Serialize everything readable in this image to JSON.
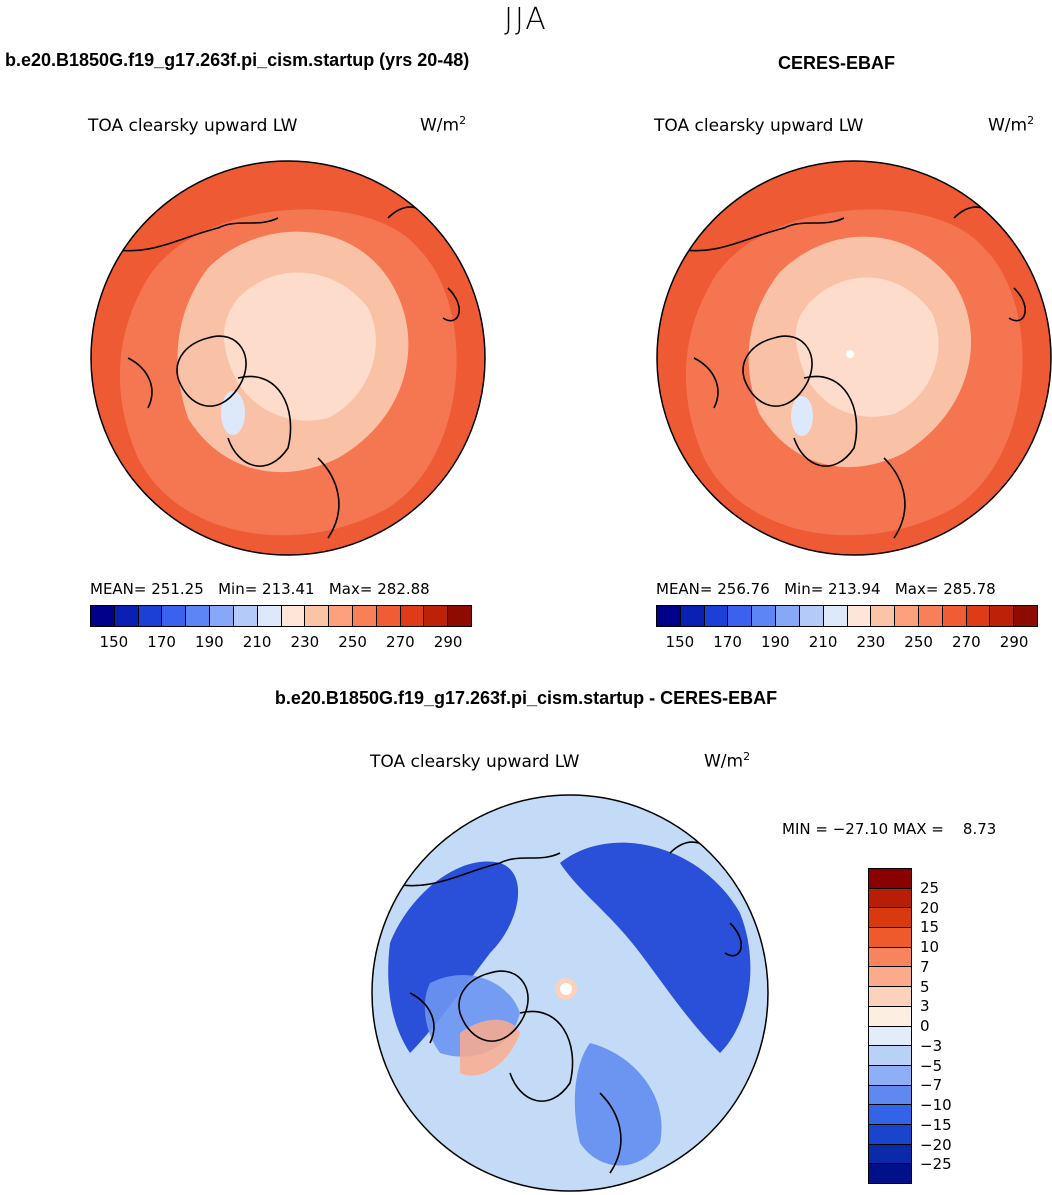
{
  "season": "JJA",
  "colors": {
    "abs_scale": [
      "#00008b",
      "#0a1fb4",
      "#1c3fd6",
      "#3a62ee",
      "#5d85f6",
      "#87a8f7",
      "#b4cbf9",
      "#dde9fb",
      "#fde6d8",
      "#fcc4a7",
      "#fca07d",
      "#f97f58",
      "#f15c36",
      "#de3b17",
      "#bd2108",
      "#8e0b02"
    ],
    "diff_scale": [
      "#8b0000",
      "#b81e06",
      "#d9390f",
      "#ee5a2c",
      "#f6845c",
      "#fbab8c",
      "#fdd2bd",
      "#fdeee2",
      "#e3edf9",
      "#b9d0f7",
      "#8eaef5",
      "#5f88f0",
      "#3363e6",
      "#1a44cc",
      "#0a2aaa",
      "#00108a"
    ],
    "map_abs_outer": "#ee5a34",
    "map_abs_mid": "#f47a55",
    "map_abs_inner": "#f9c2a6",
    "map_abs_core": "#fddccb",
    "map_diff_outer": "#c4dbf8",
    "map_diff_dark": "#2a4fd8",
    "map_diff_mid": "#6c95f2"
  },
  "chart_data": [
    {
      "type": "heatmap",
      "projection": "north-polar-stereographic",
      "panel_title": "b.e20.B1850G.f19_g17.263f.pi_cism.startup (yrs 20-48)",
      "variable": "TOA clearsky upward LW",
      "units_base": "W/m",
      "units_exp": "2",
      "mean_label": "MEAN=",
      "mean": "251.25",
      "min_label": "Min=",
      "min": "213.41",
      "max_label": "Max=",
      "max": "282.88",
      "colorbar_ticks": [
        "150",
        "170",
        "190",
        "210",
        "230",
        "250",
        "270",
        "290"
      ]
    },
    {
      "type": "heatmap",
      "projection": "north-polar-stereographic",
      "panel_title": "CERES-EBAF",
      "variable": "TOA clearsky upward LW",
      "units_base": "W/m",
      "units_exp": "2",
      "mean_label": "MEAN=",
      "mean": "256.76",
      "min_label": "Min=",
      "min": "213.94",
      "max_label": "Max=",
      "max": "285.78",
      "colorbar_ticks": [
        "150",
        "170",
        "190",
        "210",
        "230",
        "250",
        "270",
        "290"
      ]
    },
    {
      "type": "heatmap",
      "projection": "north-polar-stereographic",
      "panel_title": "b.e20.B1850G.f19_g17.263f.pi_cism.startup - CERES-EBAF",
      "variable": "TOA clearsky upward LW",
      "units_base": "W/m",
      "units_exp": "2",
      "min_label": "MIN =",
      "min": "−27.10",
      "max_label": "MAX =",
      "max": "8.73",
      "colorbar_ticks": [
        "25",
        "20",
        "15",
        "10",
        "7",
        "5",
        "3",
        "0",
        "−3",
        "−5",
        "−7",
        "−10",
        "−15",
        "−20",
        "−25"
      ]
    }
  ]
}
